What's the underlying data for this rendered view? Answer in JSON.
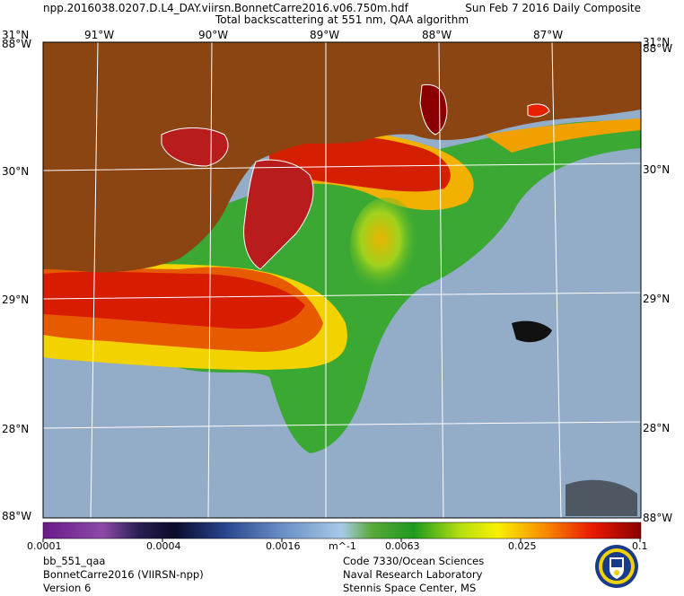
{
  "header": {
    "filename": "npp.2016038.0207.D.L4_DAY.viirsn.BonnetCarre2016.v06.750m.hdf",
    "date": "Sun Feb  7 2016 Daily Composite",
    "product": "Total backscattering at 551 nm, QAA algorithm"
  },
  "map": {
    "lat_labels": [
      "31°N",
      "30°N",
      "29°N",
      "28°N"
    ],
    "corner_labels": {
      "top_left": "88°W",
      "top_right": "88°W",
      "bottom_left": "88°W",
      "bottom_right": "88°W"
    },
    "lon_labels": [
      "91°W",
      "90°W",
      "89°W",
      "88°W",
      "87°W"
    ],
    "colors": {
      "land": "#8a4513",
      "coast": "#ffffff",
      "grid": "#ffffff"
    }
  },
  "colorbar": {
    "unit": "m^-1",
    "tick_labels": [
      "0.0001",
      "0.0004",
      "0.0016",
      "0.0063",
      "0.025",
      "0.1"
    ]
  },
  "footer": {
    "left": [
      "bb_551_qaa",
      "BonnetCarre2016 (VIIRSN-npp)",
      "Version 6"
    ],
    "right": [
      "Code 7330/Ocean Sciences",
      "Naval Research Laboratory",
      "Stennis Space Center, MS"
    ]
  }
}
